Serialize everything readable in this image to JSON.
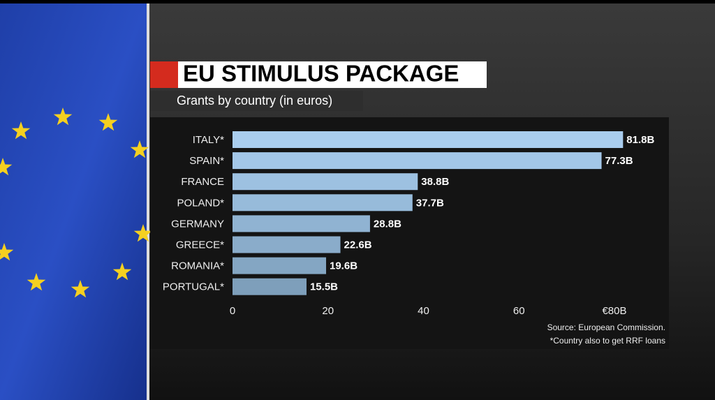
{
  "chart_data": {
    "type": "hbar",
    "title": "EU STIMULUS PACKAGE",
    "subtitle": "Grants by country (in euros)",
    "categories": [
      "ITALY*",
      "SPAIN*",
      "FRANCE",
      "POLAND*",
      "GERMANY",
      "GREECE*",
      "ROMANIA*",
      "PORTUGAL*"
    ],
    "values": [
      81.8,
      77.3,
      38.8,
      37.7,
      28.8,
      22.6,
      19.6,
      15.5
    ],
    "value_labels": [
      "81.8B",
      "77.3B",
      "38.8B",
      "37.7B",
      "28.8B",
      "22.6B",
      "19.6B",
      "15.5B"
    ],
    "colors": [
      "#a9cdee",
      "#a3c7e8",
      "#9dc1e1",
      "#97bbda",
      "#90b3d2",
      "#8aacca",
      "#84a6c3",
      "#7e9fbb"
    ],
    "xlim": [
      0,
      80
    ],
    "xticks": [
      0,
      20,
      40,
      60,
      {
        "value": 80,
        "label": "€80B"
      }
    ],
    "source": "Source: European Commission.",
    "note": "*Country also to get RRF loans"
  }
}
